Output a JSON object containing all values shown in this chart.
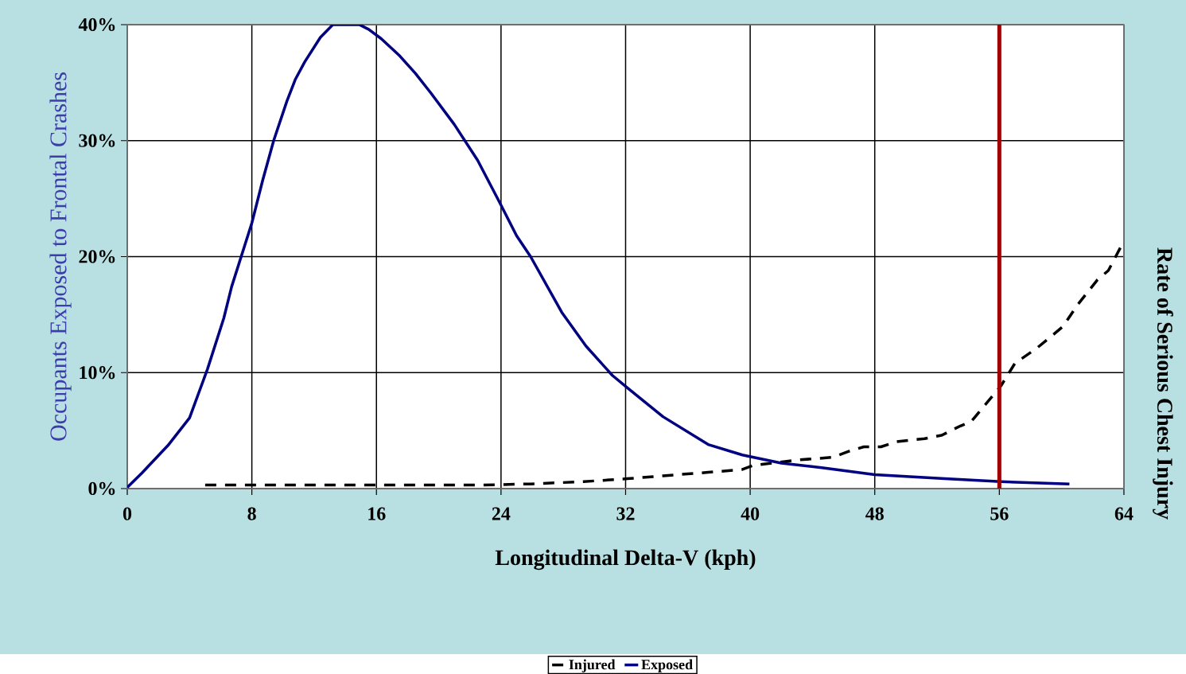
{
  "chart_data": {
    "type": "line",
    "xlabel": "Longitudinal Delta-V (kph)",
    "ylabel": "Occupants Exposed to Frontal Crashes",
    "y2label": "Rate of Serious Chest Injury",
    "xlim": [
      0,
      64
    ],
    "xticks": [
      0,
      8,
      16,
      24,
      32,
      40,
      48,
      56,
      64
    ],
    "ylim": [
      0,
      40
    ],
    "yticks": [
      {
        "value": 0,
        "label": "0%"
      },
      {
        "value": 10,
        "label": "10%"
      },
      {
        "value": 20,
        "label": "20%"
      },
      {
        "value": 30,
        "label": "30%"
      },
      {
        "value": 40,
        "label": "40%"
      }
    ],
    "grid": true,
    "legend": "bottom",
    "ref_lines": [
      {
        "axis": "x",
        "value": 56,
        "color": "#a00000"
      }
    ],
    "series": [
      {
        "name": "Injured",
        "color": "#000000",
        "line_style": "dashed",
        "x": [
          5,
          8,
          12,
          16,
          20,
          22.5,
          25.9,
          29.3,
          32.1,
          34.4,
          37.3,
          39.5,
          40.2,
          42.9,
          45.3,
          46.3,
          47.3,
          48.4,
          49.4,
          51.2,
          52.3,
          53.5,
          54.2,
          55.2,
          56.1,
          57,
          58.4,
          59.4,
          60.1,
          61,
          62.3,
          63,
          63.9
        ],
        "values": [
          0.3,
          0.3,
          0.3,
          0.3,
          0.3,
          0.3,
          0.4,
          0.6,
          0.85,
          1.1,
          1.4,
          1.65,
          2,
          2.45,
          2.7,
          3.2,
          3.6,
          3.6,
          4.05,
          4.3,
          4.6,
          5.4,
          5.8,
          7.4,
          8.85,
          10.8,
          12.1,
          13.2,
          14,
          15.8,
          18,
          18.8,
          21.1
        ]
      },
      {
        "name": "Exposed",
        "color": "#000080",
        "line_style": "solid",
        "x": [
          0,
          0.95,
          2.6,
          4,
          5.15,
          6.2,
          6.7,
          8,
          8.7,
          9.4,
          10.25,
          10.8,
          11.4,
          12.4,
          13.2,
          14.9,
          15.5,
          16.3,
          17.5,
          18.5,
          19.5,
          21,
          22.5,
          23.9,
          25,
          25.9,
          27.9,
          29.45,
          31.15,
          32.1,
          34.4,
          37.3,
          39.5,
          42,
          44.6,
          48,
          52.5,
          56.1,
          60.5
        ],
        "values": [
          0.1,
          1.35,
          3.7,
          6.1,
          10.3,
          14.7,
          17.4,
          22.9,
          26.6,
          30,
          33.4,
          35.3,
          36.8,
          38.9,
          40,
          40,
          39.6,
          38.8,
          37.3,
          35.8,
          34.1,
          31.4,
          28.3,
          24.7,
          21.8,
          20,
          15.2,
          12.3,
          9.76,
          8.7,
          6.2,
          3.8,
          2.9,
          2.2,
          1.8,
          1.2,
          0.85,
          0.6,
          0.4
        ]
      }
    ]
  }
}
